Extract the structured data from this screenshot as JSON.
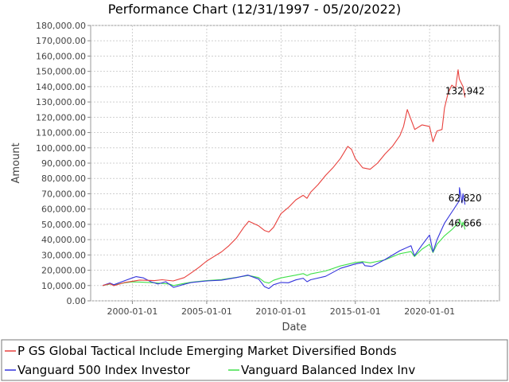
{
  "chart_data": {
    "type": "line",
    "title": "Performance Chart (12/31/1997 - 05/20/2022)",
    "xlabel": "Date",
    "ylabel": "Amount",
    "x_range": [
      "1997-12-31",
      "2022-05-20"
    ],
    "ylim": [
      0,
      180000
    ],
    "y_ticks": [
      "0.00",
      "10,000.00",
      "20,000.00",
      "30,000.00",
      "40,000.00",
      "50,000.00",
      "60,000.00",
      "70,000.00",
      "80,000.00",
      "90,000.00",
      "100,000.00",
      "110,000.00",
      "120,000.00",
      "130,000.00",
      "140,000.00",
      "150,000.00",
      "160,000.00",
      "170,000.00",
      "180,000.00"
    ],
    "x_ticks": [
      "2000-01-01",
      "2005-01-01",
      "2010-01-01",
      "2015-01-01",
      "2020-01-01"
    ],
    "grid": true,
    "legend_position": "bottom",
    "series": [
      {
        "name": "P GS Global Tactical Include Emerging Market Diversified Bonds",
        "color": "#e8413d",
        "end_label": "132,942",
        "points": [
          [
            "1997-12-31",
            10000
          ],
          [
            "1998-06-30",
            11200
          ],
          [
            "1998-10-01",
            9900
          ],
          [
            "1999-06-30",
            12000
          ],
          [
            "1999-12-31",
            12800
          ],
          [
            "2000-06-30",
            13600
          ],
          [
            "2001-06-30",
            13200
          ],
          [
            "2002-01-01",
            13800
          ],
          [
            "2002-10-01",
            13000
          ],
          [
            "2003-06-30",
            15200
          ],
          [
            "2003-12-31",
            18500
          ],
          [
            "2004-06-30",
            22000
          ],
          [
            "2004-12-31",
            26000
          ],
          [
            "2005-06-30",
            29000
          ],
          [
            "2005-12-31",
            32000
          ],
          [
            "2006-06-30",
            36000
          ],
          [
            "2006-12-31",
            41000
          ],
          [
            "2007-06-30",
            48000
          ],
          [
            "2007-10-31",
            52000
          ],
          [
            "2008-06-30",
            49000
          ],
          [
            "2008-11-20",
            46000
          ],
          [
            "2009-03-09",
            45000
          ],
          [
            "2009-06-30",
            48000
          ],
          [
            "2009-12-31",
            57000
          ],
          [
            "2010-06-30",
            61000
          ],
          [
            "2010-12-31",
            66000
          ],
          [
            "2011-06-30",
            69000
          ],
          [
            "2011-10-01",
            67000
          ],
          [
            "2011-12-31",
            71000
          ],
          [
            "2012-06-30",
            76000
          ],
          [
            "2012-12-31",
            82000
          ],
          [
            "2013-06-30",
            87000
          ],
          [
            "2013-12-31",
            93000
          ],
          [
            "2014-06-30",
            101000
          ],
          [
            "2014-09-30",
            99000
          ],
          [
            "2014-12-31",
            93000
          ],
          [
            "2015-06-30",
            87000
          ],
          [
            "2015-12-31",
            86000
          ],
          [
            "2016-06-30",
            90000
          ],
          [
            "2016-12-31",
            96000
          ],
          [
            "2017-06-30",
            101000
          ],
          [
            "2017-12-31",
            108000
          ],
          [
            "2018-03-31",
            114000
          ],
          [
            "2018-06-30",
            125000
          ],
          [
            "2018-12-31",
            112000
          ],
          [
            "2019-06-30",
            115000
          ],
          [
            "2019-12-31",
            114000
          ],
          [
            "2020-03-23",
            104000
          ],
          [
            "2020-06-30",
            111000
          ],
          [
            "2020-10-31",
            112000
          ],
          [
            "2020-12-31",
            126000
          ],
          [
            "2021-03-31",
            136000
          ],
          [
            "2021-06-30",
            141000
          ],
          [
            "2021-09-30",
            139000
          ],
          [
            "2021-11-30",
            151000
          ],
          [
            "2021-12-31",
            145000
          ],
          [
            "2022-03-31",
            140000
          ],
          [
            "2022-05-20",
            132942
          ]
        ]
      },
      {
        "name": "Vanguard 500 Index Investor",
        "color": "#3434dc",
        "end_label": "62,820",
        "points": [
          [
            "1997-12-31",
            10000
          ],
          [
            "1998-06-30",
            11600
          ],
          [
            "1998-10-01",
            10500
          ],
          [
            "1999-06-30",
            13200
          ],
          [
            "1999-12-31",
            15000
          ],
          [
            "2000-03-31",
            15800
          ],
          [
            "2000-09-30",
            15000
          ],
          [
            "2001-03-31",
            12500
          ],
          [
            "2001-09-21",
            11000
          ],
          [
            "2002-03-31",
            12500
          ],
          [
            "2002-10-09",
            8800
          ],
          [
            "2003-06-30",
            10800
          ],
          [
            "2003-12-31",
            12000
          ],
          [
            "2004-12-31",
            13000
          ],
          [
            "2005-12-31",
            13500
          ],
          [
            "2006-12-31",
            15200
          ],
          [
            "2007-10-09",
            16800
          ],
          [
            "2008-06-30",
            14200
          ],
          [
            "2008-11-20",
            9300
          ],
          [
            "2009-03-09",
            8000
          ],
          [
            "2009-06-30",
            10500
          ],
          [
            "2009-12-31",
            12000
          ],
          [
            "2010-06-30",
            11800
          ],
          [
            "2010-12-31",
            13700
          ],
          [
            "2011-06-30",
            14800
          ],
          [
            "2011-10-03",
            12500
          ],
          [
            "2011-12-31",
            13800
          ],
          [
            "2012-12-31",
            16000
          ],
          [
            "2013-12-31",
            21200
          ],
          [
            "2014-12-31",
            24100
          ],
          [
            "2015-06-30",
            25000
          ],
          [
            "2015-08-25",
            23000
          ],
          [
            "2016-02-11",
            22500
          ],
          [
            "2016-12-31",
            27000
          ],
          [
            "2017-12-31",
            32800
          ],
          [
            "2018-09-30",
            36000
          ],
          [
            "2018-12-24",
            29500
          ],
          [
            "2019-06-30",
            36500
          ],
          [
            "2019-12-31",
            43000
          ],
          [
            "2020-03-23",
            32000
          ],
          [
            "2020-06-30",
            40000
          ],
          [
            "2020-12-31",
            50800
          ],
          [
            "2021-06-30",
            58000
          ],
          [
            "2021-12-31",
            65400
          ],
          [
            "2022-01-03",
            74000
          ],
          [
            "2022-03-08",
            64000
          ],
          [
            "2022-03-29",
            70000
          ],
          [
            "2022-05-20",
            62820
          ]
        ]
      },
      {
        "name": "Vanguard Balanced Index Inv",
        "color": "#40e04a",
        "end_label": "46,666",
        "points": [
          [
            "1997-12-31",
            10000
          ],
          [
            "1998-06-30",
            11000
          ],
          [
            "1998-10-01",
            10300
          ],
          [
            "1999-06-30",
            11800
          ],
          [
            "1999-12-31",
            12400
          ],
          [
            "2000-06-30",
            12300
          ],
          [
            "2001-06-30",
            11800
          ],
          [
            "2002-06-30",
            11000
          ],
          [
            "2002-10-09",
            10000
          ],
          [
            "2003-06-30",
            11400
          ],
          [
            "2003-12-31",
            12200
          ],
          [
            "2004-12-31",
            13200
          ],
          [
            "2005-12-31",
            13900
          ],
          [
            "2006-12-31",
            15300
          ],
          [
            "2007-10-31",
            16600
          ],
          [
            "2008-06-30",
            15200
          ],
          [
            "2008-11-20",
            12300
          ],
          [
            "2009-03-09",
            11600
          ],
          [
            "2009-06-30",
            13400
          ],
          [
            "2009-12-31",
            15000
          ],
          [
            "2010-12-31",
            16800
          ],
          [
            "2011-06-30",
            17800
          ],
          [
            "2011-10-03",
            16500
          ],
          [
            "2011-12-31",
            17600
          ],
          [
            "2012-12-31",
            19500
          ],
          [
            "2013-12-31",
            22800
          ],
          [
            "2014-12-31",
            25100
          ],
          [
            "2015-06-30",
            25600
          ],
          [
            "2015-12-31",
            24800
          ],
          [
            "2016-12-31",
            26800
          ],
          [
            "2017-12-31",
            30800
          ],
          [
            "2018-09-30",
            32200
          ],
          [
            "2018-12-24",
            29000
          ],
          [
            "2019-06-30",
            33800
          ],
          [
            "2019-12-31",
            37000
          ],
          [
            "2020-03-23",
            31500
          ],
          [
            "2020-06-30",
            37000
          ],
          [
            "2020-12-31",
            42500
          ],
          [
            "2021-06-30",
            46500
          ],
          [
            "2021-12-31",
            51500
          ],
          [
            "2022-01-03",
            53500
          ],
          [
            "2022-03-08",
            49000
          ],
          [
            "2022-03-29",
            51500
          ],
          [
            "2022-05-20",
            46666
          ]
        ]
      }
    ]
  }
}
